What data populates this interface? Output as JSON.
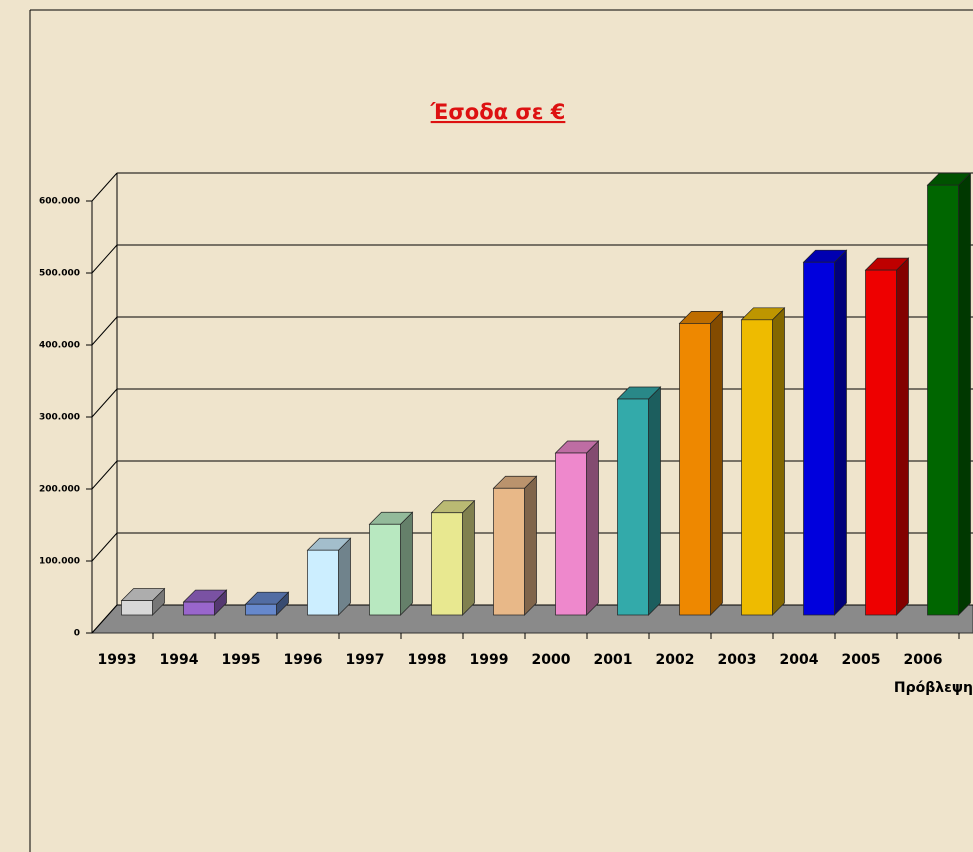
{
  "chart_data": {
    "type": "bar3d",
    "title": "Έσοδα σε €",
    "categories": [
      "1993",
      "1994",
      "1995",
      "1996",
      "1997",
      "1998",
      "1999",
      "2000",
      "2001",
      "2002",
      "2003",
      "2004",
      "2005",
      "2006"
    ],
    "values": [
      20000,
      18000,
      15000,
      90000,
      126000,
      142000,
      176000,
      225000,
      300000,
      405000,
      410000,
      490000,
      479000,
      597000
    ],
    "colors": [
      "#d8d8d8",
      "#9966cc",
      "#6688cc",
      "#cceeff",
      "#b8e8c0",
      "#e8e890",
      "#e8b888",
      "#ee88cc",
      "#33aaaa",
      "#ee8800",
      "#eebb00",
      "#0000dd",
      "#ee0000",
      "#006600"
    ],
    "annotation": "Πρόβλεψη",
    "ylim": [
      0,
      600000
    ],
    "yticks": [
      0,
      {
        "value": 100000,
        "label": "100.000"
      },
      {
        "value": 200000,
        "label": "200.000"
      },
      {
        "value": 300000,
        "label": "300.000"
      },
      {
        "value": 400000,
        "label": "400.000"
      },
      {
        "value": 500000,
        "label": "500.000"
      },
      {
        "value": 600000,
        "label": "600.000"
      }
    ],
    "grid": true
  }
}
